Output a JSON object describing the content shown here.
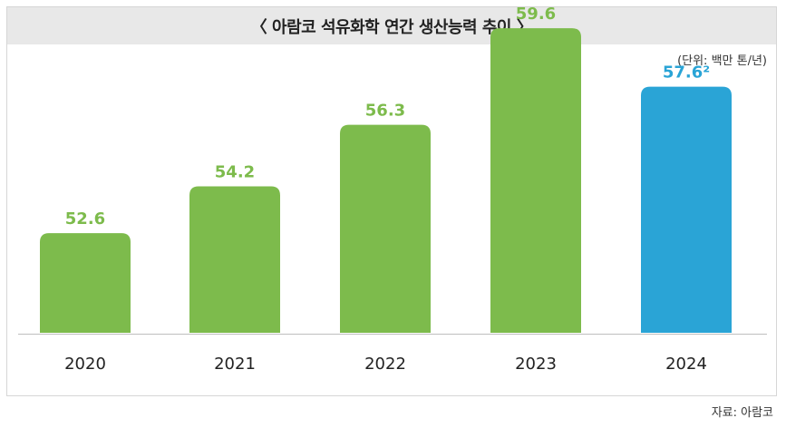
{
  "title": "〈 아람코 석유화학 연간 생산능력 추이 〉",
  "unit": "(단위: 백만 톤/년)",
  "source": "자료: 아람코",
  "colors": {
    "actual": "#7dbb4c",
    "projected": "#2aa4d6",
    "title_bg": "#e8e8e8"
  },
  "chart_data": {
    "type": "bar",
    "categories": [
      "2020",
      "2021",
      "2022",
      "2023",
      "2024"
    ],
    "values": [
      52.6,
      54.2,
      56.3,
      59.6,
      57.6
    ],
    "value_labels": [
      "52.6",
      "54.2",
      "56.3",
      "59.6",
      "57.6²"
    ],
    "highlight_index": 4,
    "xlabel": "",
    "ylabel": "",
    "title": "〈 아람코 석유화학 연간 생산능력 추이 〉",
    "grid": false,
    "legend": "none"
  }
}
